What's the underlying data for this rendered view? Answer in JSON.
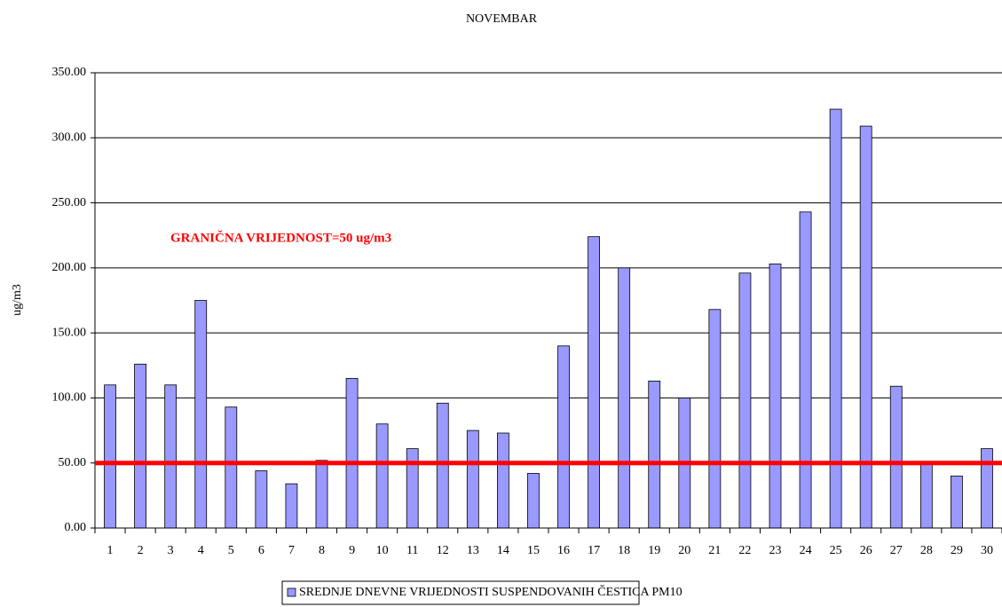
{
  "chart_data": {
    "type": "bar",
    "title": "NOVEMBAR",
    "y_label": "ug/m3",
    "categories": [
      "1",
      "2",
      "3",
      "4",
      "5",
      "6",
      "7",
      "8",
      "9",
      "10",
      "11",
      "12",
      "13",
      "14",
      "15",
      "16",
      "17",
      "18",
      "19",
      "20",
      "21",
      "22",
      "23",
      "24",
      "25",
      "26",
      "27",
      "28",
      "29",
      "30"
    ],
    "series": [
      {
        "name": "SREDNJE DNEVNE VRIJEDNOSTI SUSPENDOVANIH ČESTICA PM10",
        "color": "#9999ff",
        "values": [
          110,
          126,
          110,
          175,
          93,
          44,
          34,
          52,
          115,
          80,
          61,
          96,
          75,
          73,
          42,
          140,
          224,
          200,
          113,
          100,
          168,
          196,
          203,
          243,
          322,
          309,
          109,
          49,
          40,
          61
        ]
      }
    ],
    "ylim": [
      0,
      350
    ],
    "yticks": [
      {
        "value": 0,
        "label": "0.00"
      },
      {
        "value": 50,
        "label": "50.00"
      },
      {
        "value": 100,
        "label": "100.00"
      },
      {
        "value": 150,
        "label": "150.00"
      },
      {
        "value": 200,
        "label": "200.00"
      },
      {
        "value": 250,
        "label": "250.00"
      },
      {
        "value": 300,
        "label": "300.00"
      },
      {
        "value": 350,
        "label": "350.00"
      }
    ],
    "grid": true,
    "threshold": 50,
    "threshold_color": "#ff0000",
    "annotation": "GRANIČNA VRIJEDNOST=50 ug/m3",
    "legend": "bottom"
  }
}
